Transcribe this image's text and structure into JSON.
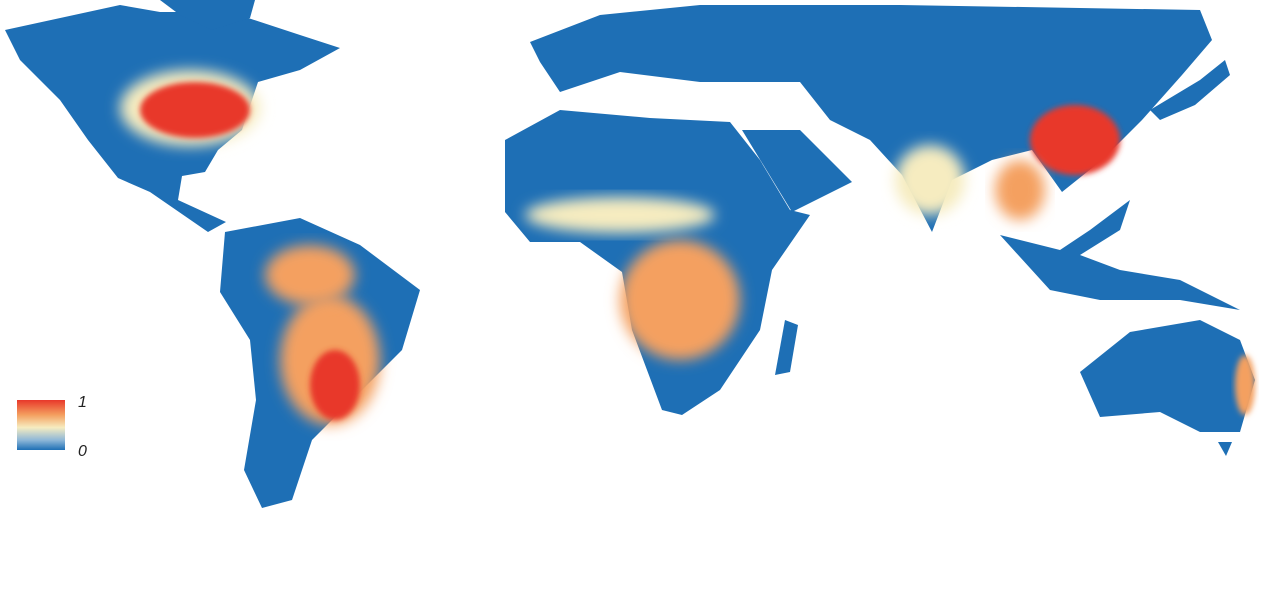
{
  "legend": {
    "max_label": "1",
    "min_label": "0"
  }
}
